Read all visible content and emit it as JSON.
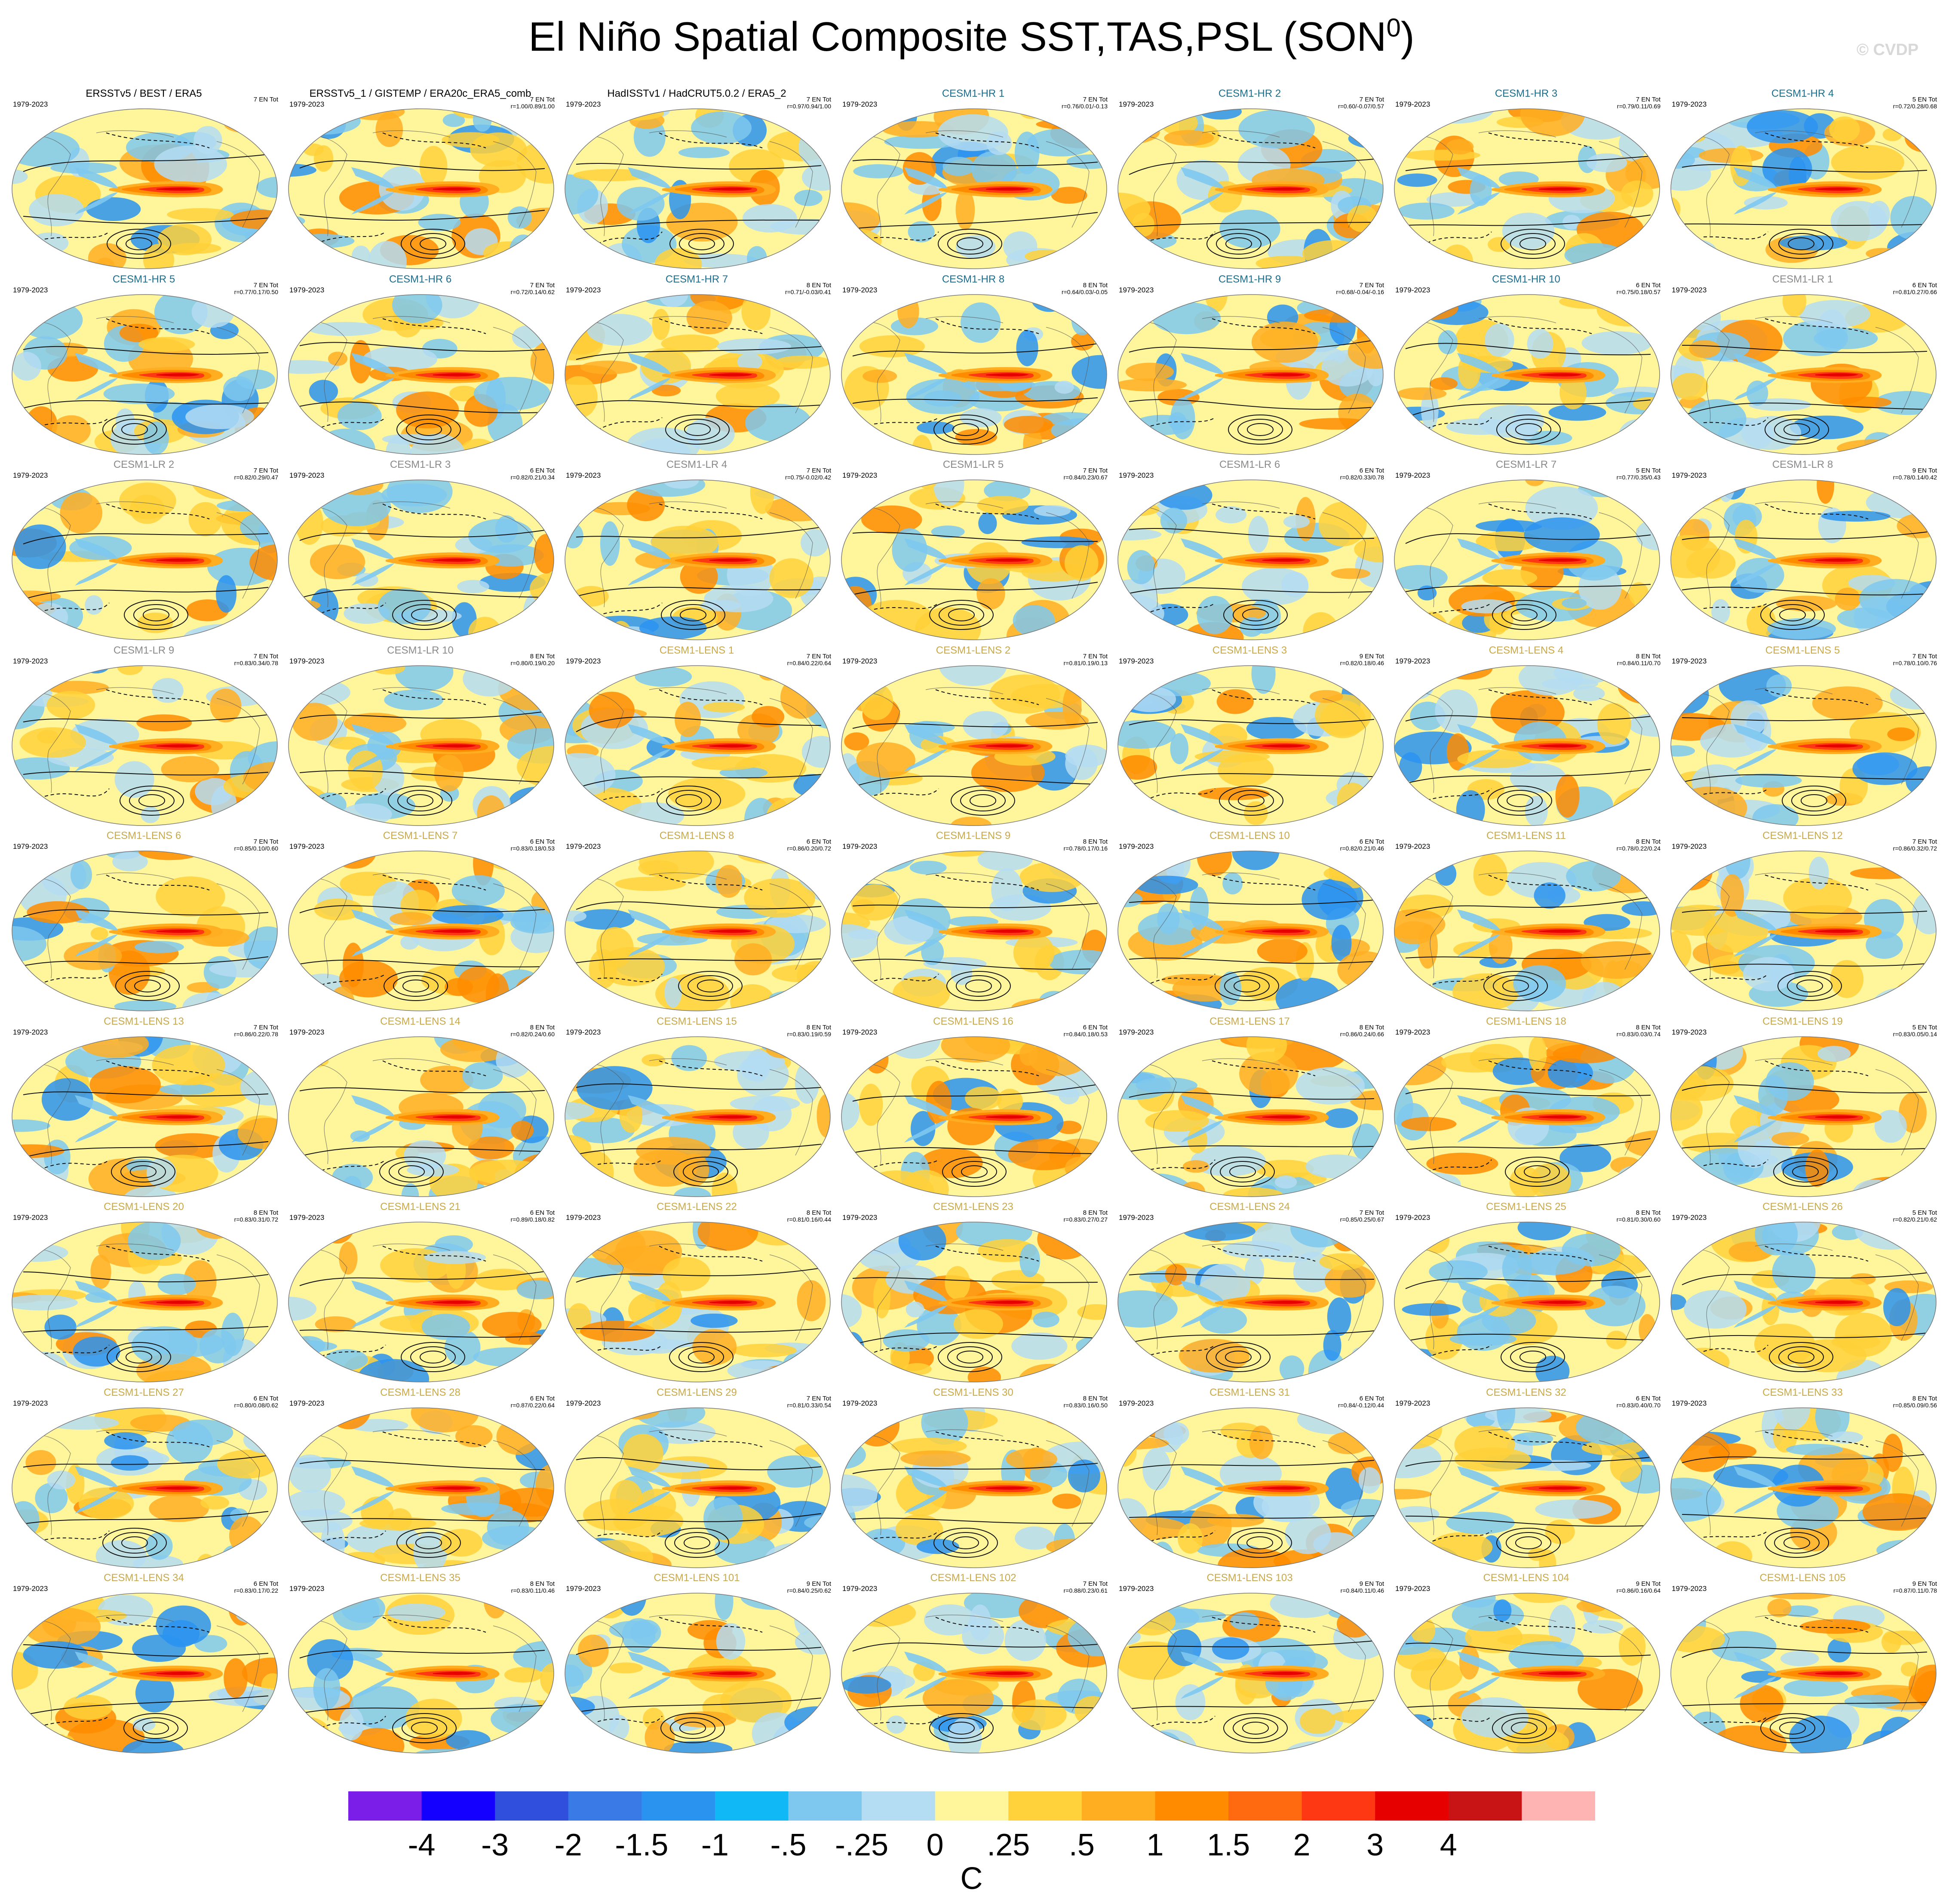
{
  "title": {
    "text": "El Niño Spatial Composite SST,TAS,PSL (SON",
    "sup": "0",
    "close": ")"
  },
  "copyright": "© CVDP",
  "colors": {
    "obs_title": "#000000",
    "hr_title": "#1a6e8e",
    "lr_title": "#8a8a8a",
    "lens_title": "#c9a948"
  },
  "colorbar": {
    "colors": [
      "#7b1fe8",
      "#1400ff",
      "#2f4fdc",
      "#3a7ae6",
      "#2a93f0",
      "#10b8f5",
      "#7ec8ef",
      "#b4dcf2",
      "#fff59b",
      "#ffd13a",
      "#ffae22",
      "#ff8c00",
      "#ff6a10",
      "#ff3814",
      "#e60000",
      "#c81414",
      "#ffb4b4"
    ],
    "labels": [
      "-4",
      "-3",
      "-2",
      "-1.5",
      "-1",
      "-.5",
      "-.25",
      "0",
      ".25",
      ".5",
      "1",
      "1.5",
      "2",
      "3",
      "4"
    ],
    "units": "C"
  },
  "panels": [
    {
      "title": "ERSSTv5 / BEST / ERA5",
      "group": "obs",
      "years": "1979-2023",
      "count": "7 EN Tot",
      "stats": ""
    },
    {
      "title": "ERSSTv5_1 / GISTEMP / ERA20c_ERA5_comb",
      "group": "obs",
      "years": "1979-2023",
      "count": "7 EN Tot",
      "stats": "r=1.00/0.89/1.00"
    },
    {
      "title": "HadISSTv1 / HadCRUT5.0.2 / ERA5_2",
      "group": "obs",
      "years": "1979-2023",
      "count": "7 EN Tot",
      "stats": "r=0.97/0.94/1.00"
    },
    {
      "title": "CESM1-HR 1",
      "group": "hr",
      "years": "1979-2023",
      "count": "7 EN Tot",
      "stats": "r=0.76/0.01/-0.13"
    },
    {
      "title": "CESM1-HR 2",
      "group": "hr",
      "years": "1979-2023",
      "count": "7 EN Tot",
      "stats": "r=0.60/-0.07/0.57"
    },
    {
      "title": "CESM1-HR 3",
      "group": "hr",
      "years": "1979-2023",
      "count": "7 EN Tot",
      "stats": "r=0.79/0.11/0.69"
    },
    {
      "title": "CESM1-HR 4",
      "group": "hr",
      "years": "1979-2023",
      "count": "5 EN Tot",
      "stats": "r=0.72/0.28/0.68"
    },
    {
      "title": "CESM1-HR 5",
      "group": "hr",
      "years": "1979-2023",
      "count": "7 EN Tot",
      "stats": "r=0.77/0.17/0.50"
    },
    {
      "title": "CESM1-HR 6",
      "group": "hr",
      "years": "1979-2023",
      "count": "7 EN Tot",
      "stats": "r=0.72/0.14/0.62"
    },
    {
      "title": "CESM1-HR 7",
      "group": "hr",
      "years": "1979-2023",
      "count": "8 EN Tot",
      "stats": "r=0.71/-0.03/0.41"
    },
    {
      "title": "CESM1-HR 8",
      "group": "hr",
      "years": "1979-2023",
      "count": "8 EN Tot",
      "stats": "r=0.64/0.03/-0.05"
    },
    {
      "title": "CESM1-HR 9",
      "group": "hr",
      "years": "1979-2023",
      "count": "7 EN Tot",
      "stats": "r=0.68/-0.04/-0.16"
    },
    {
      "title": "CESM1-HR 10",
      "group": "hr",
      "years": "1979-2023",
      "count": "6 EN Tot",
      "stats": "r=0.75/0.18/0.57"
    },
    {
      "title": "CESM1-LR 1",
      "group": "lr",
      "years": "1979-2023",
      "count": "6 EN Tot",
      "stats": "r=0.81/0.27/0.66"
    },
    {
      "title": "CESM1-LR 2",
      "group": "lr",
      "years": "1979-2023",
      "count": "7 EN Tot",
      "stats": "r=0.82/0.29/0.47"
    },
    {
      "title": "CESM1-LR 3",
      "group": "lr",
      "years": "1979-2023",
      "count": "6 EN Tot",
      "stats": "r=0.82/0.21/0.34"
    },
    {
      "title": "CESM1-LR 4",
      "group": "lr",
      "years": "1979-2023",
      "count": "7 EN Tot",
      "stats": "r=0.75/-0.02/0.42"
    },
    {
      "title": "CESM1-LR 5",
      "group": "lr",
      "years": "1979-2023",
      "count": "7 EN Tot",
      "stats": "r=0.84/0.23/0.67"
    },
    {
      "title": "CESM1-LR 6",
      "group": "lr",
      "years": "1979-2023",
      "count": "6 EN Tot",
      "stats": "r=0.82/0.33/0.78"
    },
    {
      "title": "CESM1-LR 7",
      "group": "lr",
      "years": "1979-2023",
      "count": "5 EN Tot",
      "stats": "r=0.77/0.35/0.43"
    },
    {
      "title": "CESM1-LR 8",
      "group": "lr",
      "years": "1979-2023",
      "count": "9 EN Tot",
      "stats": "r=0.78/0.14/0.42"
    },
    {
      "title": "CESM1-LR 9",
      "group": "lr",
      "years": "1979-2023",
      "count": "7 EN Tot",
      "stats": "r=0.83/0.34/0.78"
    },
    {
      "title": "CESM1-LR 10",
      "group": "lr",
      "years": "1979-2023",
      "count": "8 EN Tot",
      "stats": "r=0.80/0.19/0.20"
    },
    {
      "title": "CESM1-LENS 1",
      "group": "lens",
      "years": "1979-2023",
      "count": "7 EN Tot",
      "stats": "r=0.84/0.22/0.64"
    },
    {
      "title": "CESM1-LENS 2",
      "group": "lens",
      "years": "1979-2023",
      "count": "7 EN Tot",
      "stats": "r=0.81/0.19/0.13"
    },
    {
      "title": "CESM1-LENS 3",
      "group": "lens",
      "years": "1979-2023",
      "count": "9 EN Tot",
      "stats": "r=0.82/0.18/0.46"
    },
    {
      "title": "CESM1-LENS 4",
      "group": "lens",
      "years": "1979-2023",
      "count": "8 EN Tot",
      "stats": "r=0.84/0.11/0.70"
    },
    {
      "title": "CESM1-LENS 5",
      "group": "lens",
      "years": "1979-2023",
      "count": "7 EN Tot",
      "stats": "r=0.78/0.10/0.76"
    },
    {
      "title": "CESM1-LENS 6",
      "group": "lens",
      "years": "1979-2023",
      "count": "7 EN Tot",
      "stats": "r=0.85/0.10/0.60"
    },
    {
      "title": "CESM1-LENS 7",
      "group": "lens",
      "years": "1979-2023",
      "count": "6 EN Tot",
      "stats": "r=0.83/0.18/0.53"
    },
    {
      "title": "CESM1-LENS 8",
      "group": "lens",
      "years": "1979-2023",
      "count": "6 EN Tot",
      "stats": "r=0.86/0.20/0.72"
    },
    {
      "title": "CESM1-LENS 9",
      "group": "lens",
      "years": "1979-2023",
      "count": "8 EN Tot",
      "stats": "r=0.78/0.17/0.16"
    },
    {
      "title": "CESM1-LENS 10",
      "group": "lens",
      "years": "1979-2023",
      "count": "6 EN Tot",
      "stats": "r=0.82/0.21/0.46"
    },
    {
      "title": "CESM1-LENS 11",
      "group": "lens",
      "years": "1979-2023",
      "count": "8 EN Tot",
      "stats": "r=0.78/0.22/0.24"
    },
    {
      "title": "CESM1-LENS 12",
      "group": "lens",
      "years": "1979-2023",
      "count": "7 EN Tot",
      "stats": "r=0.86/0.32/0.72"
    },
    {
      "title": "CESM1-LENS 13",
      "group": "lens",
      "years": "1979-2023",
      "count": "7 EN Tot",
      "stats": "r=0.86/0.22/0.78"
    },
    {
      "title": "CESM1-LENS 14",
      "group": "lens",
      "years": "1979-2023",
      "count": "8 EN Tot",
      "stats": "r=0.82/0.24/0.60"
    },
    {
      "title": "CESM1-LENS 15",
      "group": "lens",
      "years": "1979-2023",
      "count": "8 EN Tot",
      "stats": "r=0.83/0.19/0.59"
    },
    {
      "title": "CESM1-LENS 16",
      "group": "lens",
      "years": "1979-2023",
      "count": "6 EN Tot",
      "stats": "r=0.84/0.18/0.53"
    },
    {
      "title": "CESM1-LENS 17",
      "group": "lens",
      "years": "1979-2023",
      "count": "8 EN Tot",
      "stats": "r=0.86/0.24/0.66"
    },
    {
      "title": "CESM1-LENS 18",
      "group": "lens",
      "years": "1979-2023",
      "count": "8 EN Tot",
      "stats": "r=0.83/0.03/0.74"
    },
    {
      "title": "CESM1-LENS 19",
      "group": "lens",
      "years": "1979-2023",
      "count": "5 EN Tot",
      "stats": "r=0.83/0.05/0.14"
    },
    {
      "title": "CESM1-LENS 20",
      "group": "lens",
      "years": "1979-2023",
      "count": "8 EN Tot",
      "stats": "r=0.83/0.31/0.72"
    },
    {
      "title": "CESM1-LENS 21",
      "group": "lens",
      "years": "1979-2023",
      "count": "6 EN Tot",
      "stats": "r=0.89/0.18/0.82"
    },
    {
      "title": "CESM1-LENS 22",
      "group": "lens",
      "years": "1979-2023",
      "count": "8 EN Tot",
      "stats": "r=0.81/0.16/0.44"
    },
    {
      "title": "CESM1-LENS 23",
      "group": "lens",
      "years": "1979-2023",
      "count": "8 EN Tot",
      "stats": "r=0.83/0.27/0.27"
    },
    {
      "title": "CESM1-LENS 24",
      "group": "lens",
      "years": "1979-2023",
      "count": "7 EN Tot",
      "stats": "r=0.85/0.25/0.67"
    },
    {
      "title": "CESM1-LENS 25",
      "group": "lens",
      "years": "1979-2023",
      "count": "8 EN Tot",
      "stats": "r=0.81/0.30/0.60"
    },
    {
      "title": "CESM1-LENS 26",
      "group": "lens",
      "years": "1979-2023",
      "count": "5 EN Tot",
      "stats": "r=0.82/0.21/0.62"
    },
    {
      "title": "CESM1-LENS 27",
      "group": "lens",
      "years": "1979-2023",
      "count": "6 EN Tot",
      "stats": "r=0.80/0.08/0.62"
    },
    {
      "title": "CESM1-LENS 28",
      "group": "lens",
      "years": "1979-2023",
      "count": "6 EN Tot",
      "stats": "r=0.87/0.22/0.64"
    },
    {
      "title": "CESM1-LENS 29",
      "group": "lens",
      "years": "1979-2023",
      "count": "7 EN Tot",
      "stats": "r=0.81/0.33/0.54"
    },
    {
      "title": "CESM1-LENS 30",
      "group": "lens",
      "years": "1979-2023",
      "count": "8 EN Tot",
      "stats": "r=0.83/0.16/0.50"
    },
    {
      "title": "CESM1-LENS 31",
      "group": "lens",
      "years": "1979-2023",
      "count": "6 EN Tot",
      "stats": "r=0.84/-0.12/0.44"
    },
    {
      "title": "CESM1-LENS 32",
      "group": "lens",
      "years": "1979-2023",
      "count": "6 EN Tot",
      "stats": "r=0.83/0.40/0.70"
    },
    {
      "title": "CESM1-LENS 33",
      "group": "lens",
      "years": "1979-2023",
      "count": "8 EN Tot",
      "stats": "r=0.85/0.09/0.56"
    },
    {
      "title": "CESM1-LENS 34",
      "group": "lens",
      "years": "1979-2023",
      "count": "6 EN Tot",
      "stats": "r=0.83/0.17/0.22"
    },
    {
      "title": "CESM1-LENS 35",
      "group": "lens",
      "years": "1979-2023",
      "count": "8 EN Tot",
      "stats": "r=0.83/0.11/0.46"
    },
    {
      "title": "CESM1-LENS 101",
      "group": "lens",
      "years": "1979-2023",
      "count": "9 EN Tot",
      "stats": "r=0.84/0.25/0.62"
    },
    {
      "title": "CESM1-LENS 102",
      "group": "lens",
      "years": "1979-2023",
      "count": "7 EN Tot",
      "stats": "r=0.88/0.23/0.61"
    },
    {
      "title": "CESM1-LENS 103",
      "group": "lens",
      "years": "1979-2023",
      "count": "9 EN Tot",
      "stats": "r=0.84/0.11/0.46"
    },
    {
      "title": "CESM1-LENS 104",
      "group": "lens",
      "years": "1979-2023",
      "count": "9 EN Tot",
      "stats": "r=0.86/0.16/0.64"
    },
    {
      "title": "CESM1-LENS 105",
      "group": "lens",
      "years": "1979-2023",
      "count": "9 EN Tot",
      "stats": "r=0.87/0.11/0.78"
    }
  ]
}
